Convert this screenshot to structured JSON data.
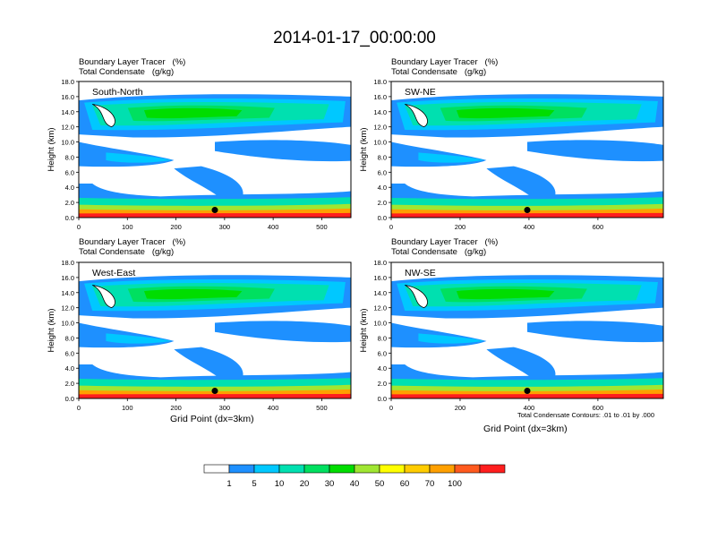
{
  "title": "2014-01-17_00:00:00",
  "chart_data": [
    {
      "type": "heatmap",
      "name": "South-North",
      "subtitle_line1": "Boundary Layer Tracer   (%)",
      "subtitle_line2": "Total Condensate   (g/kg)",
      "ylabel": "Height (km)",
      "xlabel": "",
      "xlim": [
        0,
        560
      ],
      "xticks": [
        "0",
        "100",
        "200",
        "300",
        "400",
        "500"
      ],
      "xtick_values": [
        0,
        100,
        200,
        300,
        400,
        500
      ],
      "ylim": [
        0,
        18
      ],
      "yticks": [
        "0.0",
        "2.0",
        "4.0",
        "6.0",
        "8.0",
        "10.0",
        "12.0",
        "14.0",
        "16.0",
        "18.0"
      ],
      "marker_x": 280,
      "marker_y": 1.0
    },
    {
      "type": "heatmap",
      "name": "SW-NE",
      "subtitle_line1": "Boundary Layer Tracer   (%)",
      "subtitle_line2": "Total Condensate   (g/kg)",
      "ylabel": "Height (km)",
      "xlabel": "",
      "xlim": [
        0,
        790
      ],
      "xticks": [
        "0",
        "200",
        "400",
        "600"
      ],
      "xtick_values": [
        0,
        200,
        400,
        600
      ],
      "ylim": [
        0,
        18
      ],
      "yticks": [
        "0.0",
        "2.0",
        "4.0",
        "6.0",
        "8.0",
        "10.0",
        "12.0",
        "14.0",
        "16.0",
        "18.0"
      ],
      "marker_x": 395,
      "marker_y": 1.0
    },
    {
      "type": "heatmap",
      "name": "West-East",
      "subtitle_line1": "Boundary Layer Tracer   (%)",
      "subtitle_line2": "Total Condensate   (g/kg)",
      "ylabel": "Height (km)",
      "xlabel": "Grid Point (dx=3km)",
      "xlim": [
        0,
        560
      ],
      "xticks": [
        "0",
        "100",
        "200",
        "300",
        "400",
        "500"
      ],
      "xtick_values": [
        0,
        100,
        200,
        300,
        400,
        500
      ],
      "ylim": [
        0,
        18
      ],
      "yticks": [
        "0.0",
        "2.0",
        "4.0",
        "6.0",
        "8.0",
        "10.0",
        "12.0",
        "14.0",
        "16.0",
        "18.0"
      ],
      "marker_x": 280,
      "marker_y": 1.0
    },
    {
      "type": "heatmap",
      "name": "NW-SE",
      "subtitle_line1": "Boundary Layer Tracer   (%)",
      "subtitle_line2": "Total Condensate   (g/kg)",
      "ylabel": "Height (km)",
      "xlabel": "Grid Point (dx=3km)",
      "xlim": [
        0,
        790
      ],
      "xticks": [
        "0",
        "200",
        "400",
        "600"
      ],
      "xtick_values": [
        0,
        200,
        400,
        600
      ],
      "ylim": [
        0,
        18
      ],
      "yticks": [
        "0.0",
        "2.0",
        "4.0",
        "6.0",
        "8.0",
        "10.0",
        "12.0",
        "14.0",
        "16.0",
        "18.0"
      ],
      "marker_x": 395,
      "marker_y": 1.0,
      "contour_note": "Total Condensate Contours: .01 to .01 by .000"
    }
  ],
  "colorbar": {
    "colors": [
      "#ffffff",
      "#1e90ff",
      "#00c8ff",
      "#00e0b0",
      "#00e060",
      "#00dd00",
      "#a0e632",
      "#ffff00",
      "#ffcc00",
      "#ffa000",
      "#ff5a1e",
      "#ff1e1e"
    ],
    "labels": [
      "1",
      "5",
      "10",
      "20",
      "30",
      "40",
      "50",
      "60",
      "70",
      "100"
    ]
  }
}
